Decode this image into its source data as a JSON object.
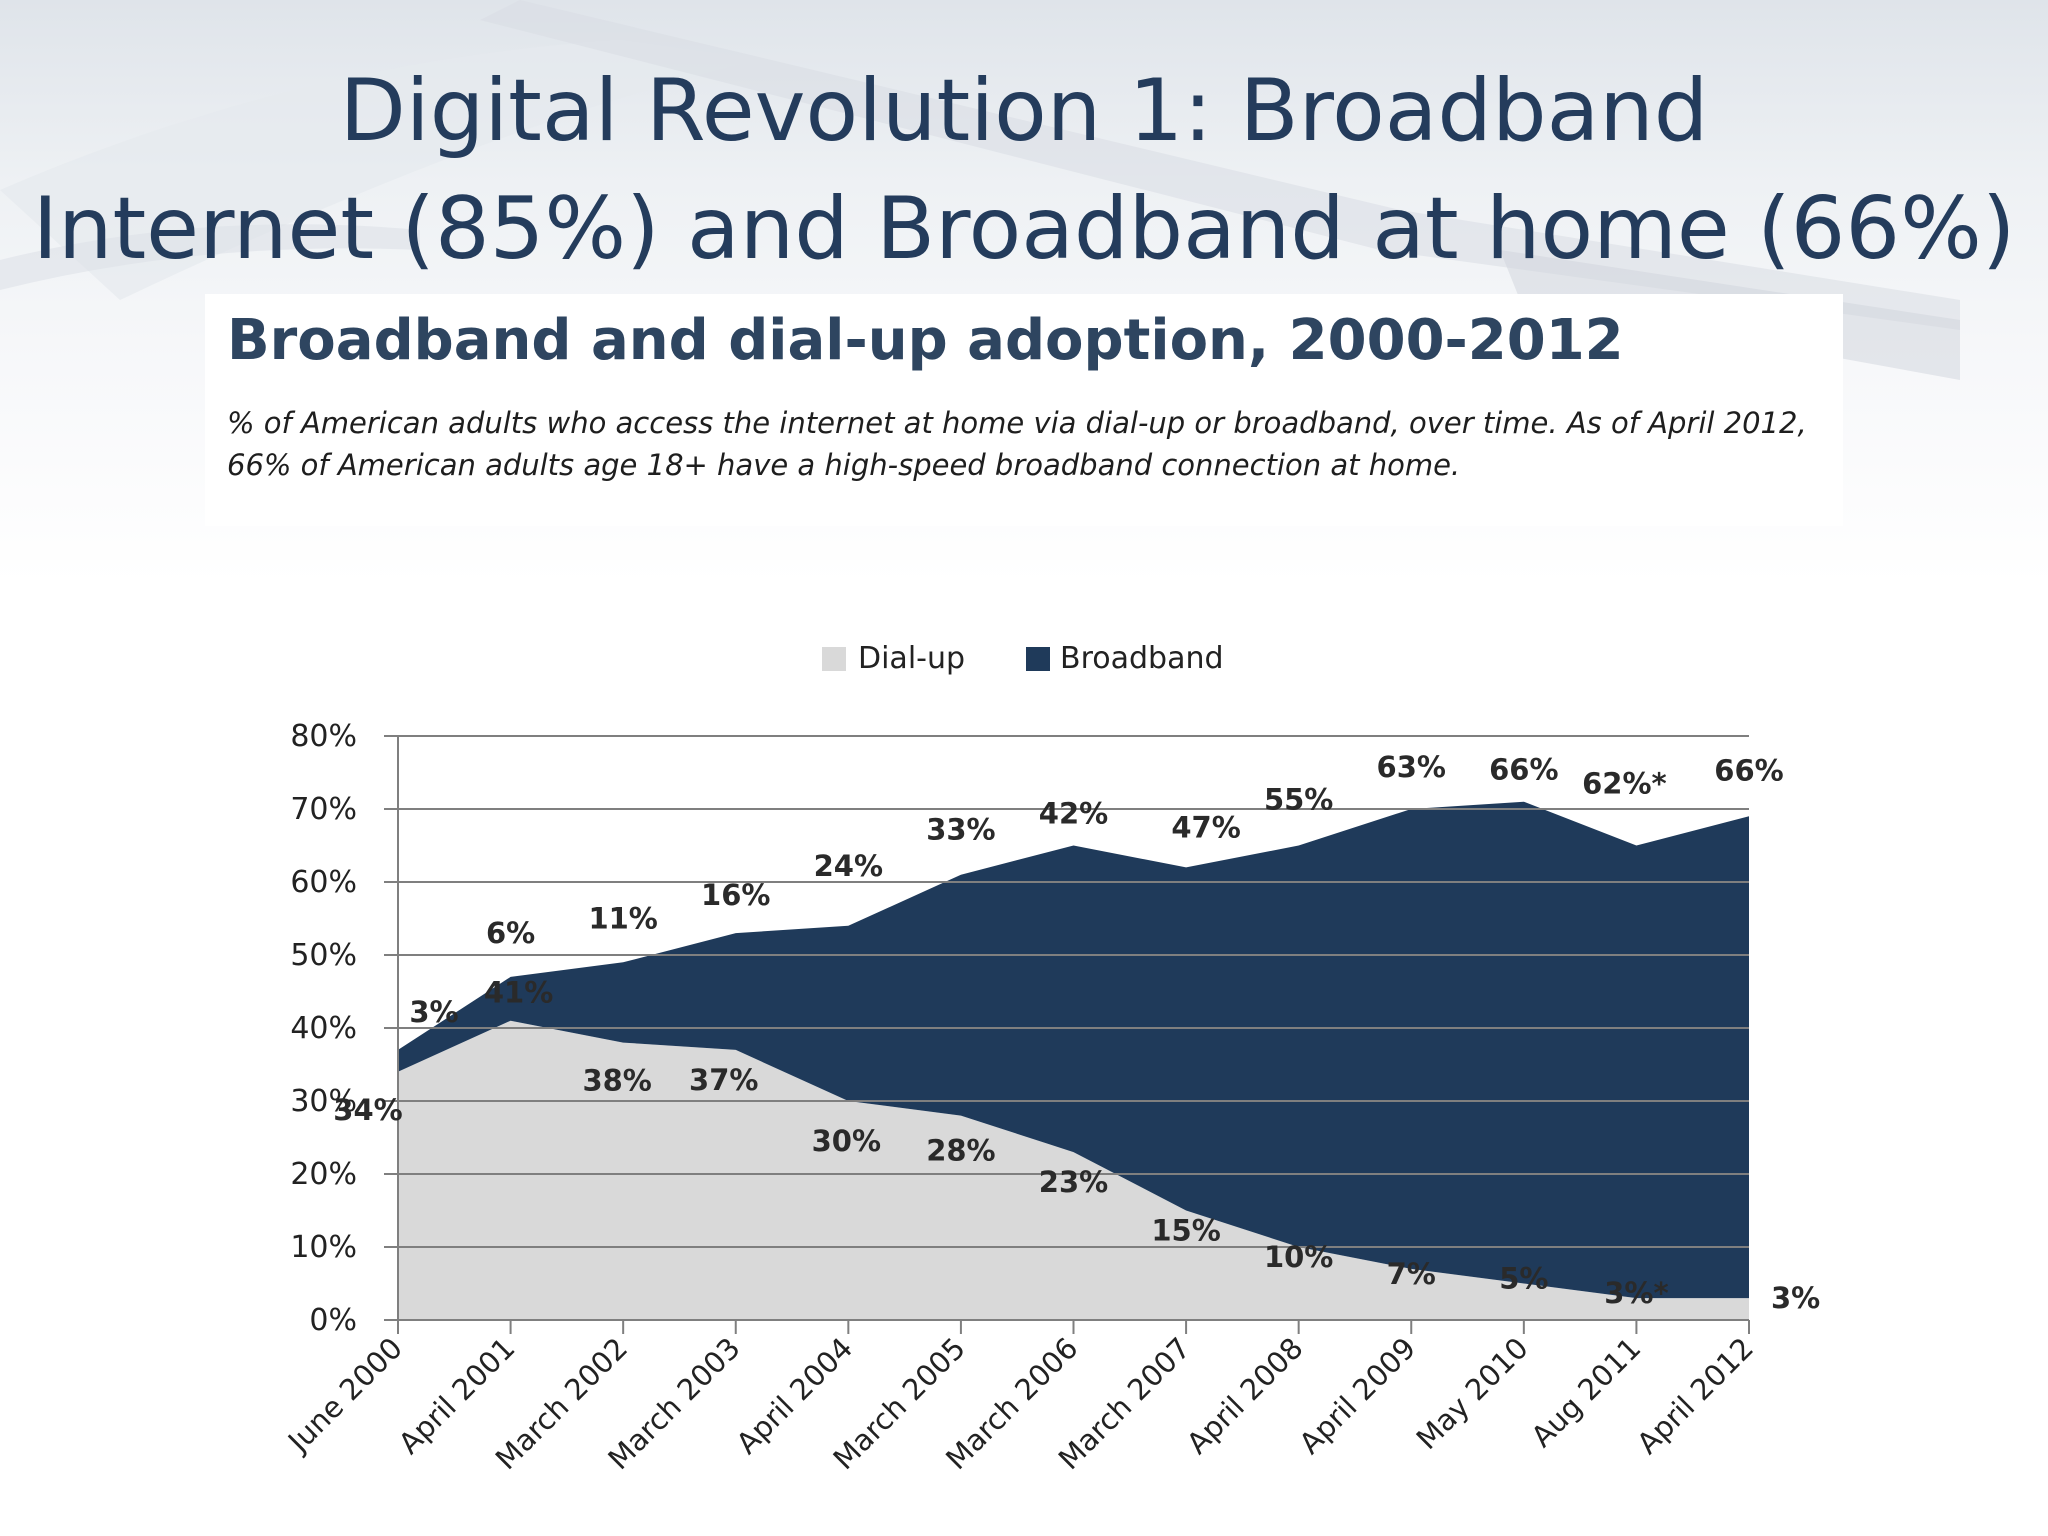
{
  "slide": {
    "title_line1": "Digital Revolution 1: Broadband",
    "title_line2": "Internet (85%) and Broadband at home (66%)"
  },
  "colors": {
    "title": "#243c5c",
    "dialup": "#d9d9d9",
    "broadband": "#1f3a5a",
    "grid": "#7f7f7f"
  },
  "chart_data": {
    "type": "area",
    "stacked": true,
    "title": "Broadband and dial-up adoption, 2000-2012",
    "subtitle": "% of American adults who access the internet at home via dial-up or broadband, over time. As of April 2012, 66% of American adults age 18+ have a high-speed broadband connection at home.",
    "categories": [
      "June 2000",
      "April 2001",
      "March 2002",
      "March 2003",
      "April 2004",
      "March 2005",
      "March 2006",
      "March 2007",
      "April 2008",
      "April 2009",
      "May 2010",
      "Aug 2011",
      "April 2012"
    ],
    "series": [
      {
        "name": "Dial-up",
        "values": [
          34,
          41,
          38,
          37,
          30,
          28,
          23,
          15,
          10,
          7,
          5,
          3,
          3
        ],
        "labels": [
          "34%",
          "41%",
          "38%",
          "37%",
          "30%",
          "28%",
          "23%",
          "15%",
          "10%",
          "7%",
          "5%",
          "3%*",
          "3%"
        ]
      },
      {
        "name": "Broadband",
        "values": [
          3,
          6,
          11,
          16,
          24,
          33,
          42,
          47,
          55,
          63,
          66,
          62,
          66
        ],
        "labels": [
          "3%",
          "6%",
          "11%",
          "16%",
          "24%",
          "33%",
          "42%",
          "47%",
          "55%",
          "63%",
          "66%",
          "62%*",
          "66%"
        ]
      }
    ],
    "y_ticks": [
      "0%",
      "10%",
      "20%",
      "30%",
      "40%",
      "50%",
      "60%",
      "70%",
      "80%"
    ],
    "ylim": [
      0,
      80
    ],
    "grid": true,
    "legend_position": "top-center"
  }
}
